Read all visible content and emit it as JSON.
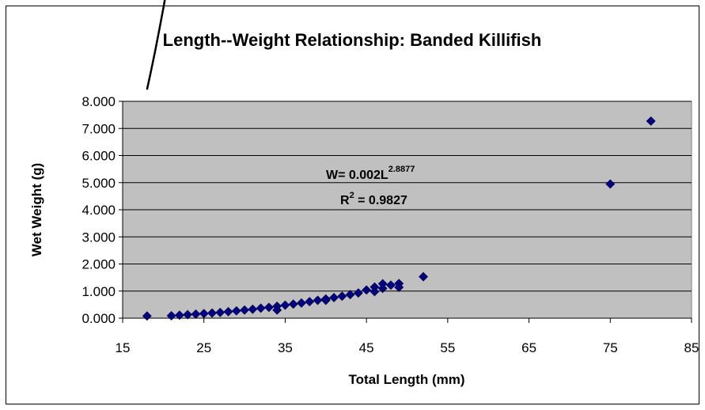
{
  "chart_data": {
    "type": "scatter",
    "title": "Length--Weight Relationship: Banded Killifish",
    "xlabel": "Total Length (mm)",
    "ylabel": "Wet Weight (g)",
    "xlim": [
      15,
      85
    ],
    "ylim": [
      0,
      8
    ],
    "x_ticks": [
      "15",
      "25",
      "35",
      "45",
      "55",
      "65",
      "75",
      "85"
    ],
    "y_ticks": [
      "0.000",
      "1.000",
      "2.000",
      "3.000",
      "4.000",
      "5.000",
      "6.000",
      "7.000",
      "8.000"
    ],
    "grid": "horizontal",
    "plot_background": "#c0c0c0",
    "marker_color": "#000080",
    "trend_color": "#000000",
    "series": [
      {
        "points": [
          [
            18,
            0.08
          ],
          [
            21,
            0.09
          ],
          [
            22,
            0.11
          ],
          [
            23,
            0.13
          ],
          [
            24,
            0.15
          ],
          [
            25,
            0.17
          ],
          [
            26,
            0.19
          ],
          [
            27,
            0.21
          ],
          [
            28,
            0.24
          ],
          [
            29,
            0.27
          ],
          [
            30,
            0.3
          ],
          [
            31,
            0.33
          ],
          [
            32,
            0.37
          ],
          [
            33,
            0.4
          ],
          [
            34,
            0.3
          ],
          [
            34,
            0.44
          ],
          [
            35,
            0.48
          ],
          [
            36,
            0.52
          ],
          [
            37,
            0.56
          ],
          [
            38,
            0.61
          ],
          [
            39,
            0.66
          ],
          [
            40,
            0.71
          ],
          [
            40,
            0.66
          ],
          [
            41,
            0.76
          ],
          [
            42,
            0.81
          ],
          [
            43,
            0.87
          ],
          [
            44,
            0.93
          ],
          [
            45,
            1.04
          ],
          [
            46,
            0.98
          ],
          [
            46,
            1.15
          ],
          [
            47,
            1.1
          ],
          [
            47,
            1.27
          ],
          [
            48,
            1.22
          ],
          [
            49,
            1.28
          ],
          [
            49,
            1.14
          ],
          [
            52,
            1.53
          ],
          [
            75,
            4.95
          ],
          [
            80,
            7.27
          ]
        ]
      }
    ],
    "trendline": {
      "type": "power",
      "coefficient": 0.002,
      "exponent": 2.8877,
      "x_range": [
        18,
        80
      ]
    },
    "annotation": {
      "equation_prefix": "W= 0.002L",
      "equation_exponent": "2.8877",
      "r2_prefix": "R",
      "r2_exponent": "2",
      "r2_suffix": " = 0.9827"
    }
  }
}
